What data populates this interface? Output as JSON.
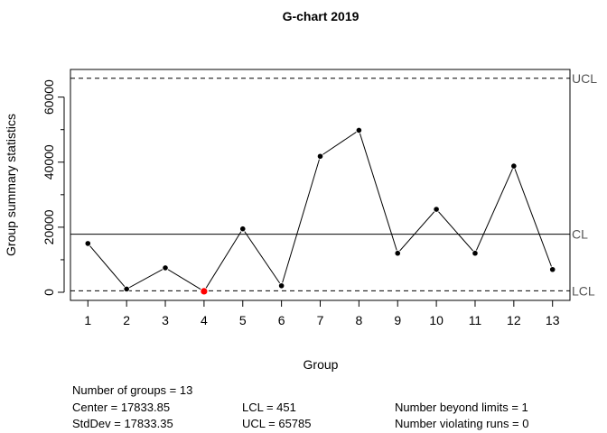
{
  "chart_data": {
    "type": "line",
    "title": "G-chart 2019",
    "xlabel": "Group",
    "ylabel": "Group summary statistics",
    "x": [
      1,
      2,
      3,
      4,
      5,
      6,
      7,
      8,
      9,
      10,
      11,
      12,
      13
    ],
    "values": [
      15000,
      1000,
      7500,
      300,
      19500,
      2000,
      41800,
      49800,
      12000,
      25500,
      12000,
      38800,
      7000
    ],
    "highlight_index": 3,
    "xlim": [
      0.55,
      13.45
    ],
    "ylim": [
      -2500,
      68500
    ],
    "y_ticks": [
      0,
      20000,
      40000,
      60000
    ],
    "y_ticks_minor": [
      10000,
      30000,
      50000
    ],
    "limits": {
      "ucl": 65785,
      "cl": 17833.85,
      "lcl": 451,
      "ucl_label": "UCL",
      "cl_label": "CL",
      "lcl_label": "LCL"
    },
    "colors": {
      "points": "#000000",
      "highlight": "#ff0000",
      "lines": "#000000",
      "limit_label": "#555555"
    }
  },
  "stats": {
    "groups": "Number of groups = 13",
    "center": "Center = 17833.85",
    "stddev": "StdDev = 17833.35",
    "lcl": "LCL = 451",
    "ucl": "UCL = 65785",
    "beyond": "Number beyond limits = 1",
    "runs": "Number violating runs = 0"
  }
}
